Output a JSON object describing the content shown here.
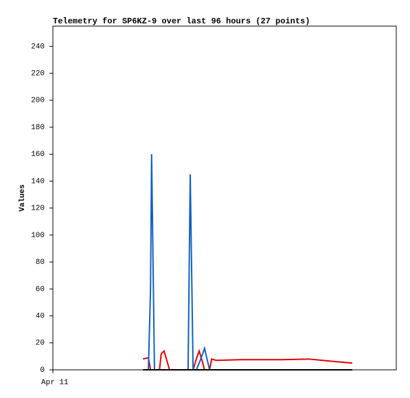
{
  "chart_data": {
    "type": "line",
    "title": "Telemetry for SP6KZ-9 over last 96 hours (27 points)",
    "y_label": "Values",
    "x": [
      25.2,
      26.7,
      27.3,
      27.6,
      28.0,
      28.4,
      29.8,
      30.3,
      31.1,
      32.6,
      35.5,
      37.1,
      37.8,
      38.4,
      39.2,
      40.1,
      40.9,
      41.9,
      42.4,
      43.8,
      44.4,
      45.7,
      52.4,
      63.9,
      71.6,
      77.4,
      83.7
    ],
    "series": [
      {
        "color": "#e00000",
        "values": [
          8,
          9,
          0,
          0,
          0,
          0,
          0,
          12,
          14,
          0,
          0,
          0,
          0,
          0,
          0,
          8,
          14,
          5,
          0,
          0,
          8,
          7,
          7.5,
          7.5,
          8,
          6.5,
          5
        ]
      },
      {
        "color": "#1060c0",
        "values": [
          0,
          0,
          60,
          160,
          80,
          0,
          0,
          0,
          0,
          0,
          0,
          0,
          0,
          145,
          0,
          0,
          5,
          12,
          16,
          0,
          0,
          0,
          0,
          0,
          0,
          0,
          0
        ]
      },
      {
        "color": "#000000",
        "values": [
          0,
          0,
          0,
          0,
          0,
          0,
          0,
          0,
          0,
          0,
          0,
          0,
          0,
          0,
          0,
          0,
          0,
          0,
          0,
          0,
          0,
          0,
          0,
          0,
          0,
          0,
          0
        ]
      }
    ],
    "xlim": [
      0,
      96
    ],
    "xticks": [
      {
        "value": 0,
        "label": "Apr 11"
      }
    ],
    "ylim": [
      0,
      255
    ],
    "yticks": [
      0,
      20,
      40,
      60,
      80,
      100,
      120,
      140,
      160,
      180,
      200,
      220,
      240
    ],
    "grid": false
  }
}
